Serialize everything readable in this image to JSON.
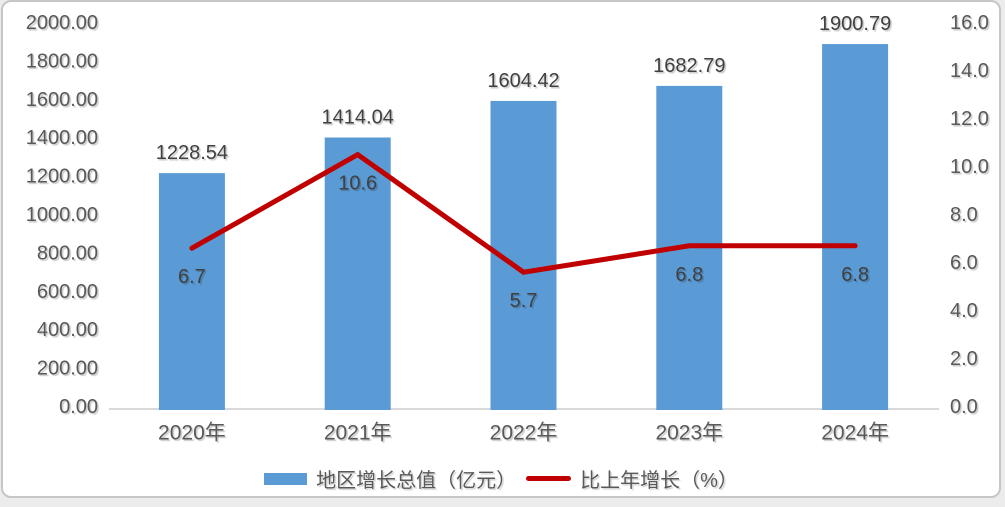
{
  "chart_data": {
    "type": "combo-bar-line",
    "categories": [
      "2020年",
      "2021年",
      "2022年",
      "2023年",
      "2024年"
    ],
    "series": [
      {
        "name": "地区增长总值（亿元）",
        "type": "bar",
        "axis": "left",
        "values": [
          1228.54,
          1414.04,
          1604.42,
          1682.79,
          1900.79
        ],
        "labels": [
          "1228.54",
          "1414.04",
          "1604.42",
          "1682.79",
          "1900.79"
        ],
        "color": "#5B9BD5"
      },
      {
        "name": "比上年增长（%）",
        "type": "line",
        "axis": "right",
        "values": [
          6.7,
          10.6,
          5.7,
          6.8,
          6.8
        ],
        "labels": [
          "6.7",
          "10.6",
          "5.7",
          "6.8",
          "6.8"
        ],
        "color": "#C00000"
      }
    ],
    "left_axis": {
      "min": 0,
      "max": 2000,
      "step": 200,
      "tick_labels": [
        "0.00",
        "200.00",
        "400.00",
        "600.00",
        "800.00",
        "1000.00",
        "1200.00",
        "1400.00",
        "1600.00",
        "1800.00",
        "2000.00"
      ]
    },
    "right_axis": {
      "min": 0,
      "max": 16,
      "step": 2,
      "tick_labels": [
        "0.0",
        "2.0",
        "4.0",
        "6.0",
        "8.0",
        "10.0",
        "12.0",
        "14.0",
        "16.0"
      ]
    },
    "grid": false,
    "legend_position": "bottom",
    "colors": {
      "bar": "#5B9BD5",
      "line": "#C00000",
      "tick_label": "#595959",
      "data_label": "#404040",
      "axis_line": "#D9D9D9",
      "card_border": "#C6C6C6",
      "background": "#FFFFFF"
    }
  }
}
